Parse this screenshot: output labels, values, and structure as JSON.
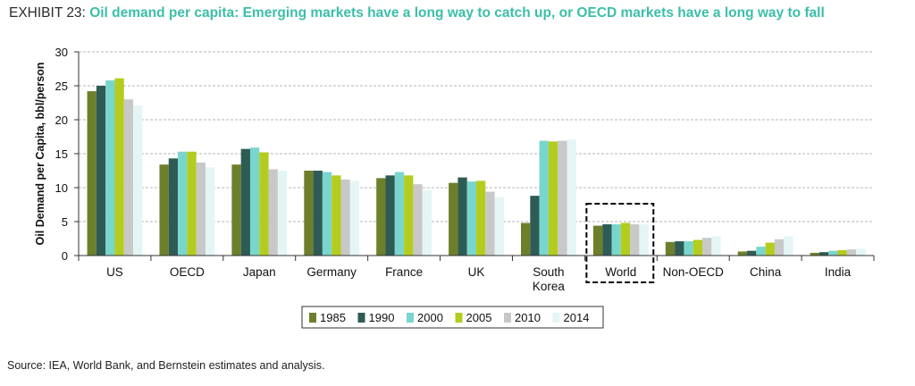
{
  "exhibit_label": "EXHIBIT 23:",
  "exhibit_title": "Oil demand per capita: Emerging markets have a long way to catch up, or OECD markets have a long way to fall",
  "source": "Source: IEA, World Bank, and Bernstein estimates and analysis.",
  "colors": {
    "1985": "#6e7f2b",
    "1990": "#2f5b55",
    "2000": "#79d6cc",
    "2005": "#b4cc1e",
    "2010": "#c8c8c8",
    "2014": "#e3f6f5",
    "highlight_box": "#000000",
    "title_accent": "#3bbfa8"
  },
  "chart_data": {
    "type": "bar",
    "title": "Oil demand per capita: Emerging markets have a long way to catch up, or OECD markets have a long way to fall",
    "xlabel": "",
    "ylabel": "Oil Demand per Capita, bbl/person",
    "ylim": [
      0,
      30
    ],
    "yticks": [
      "0",
      "5",
      "10",
      "15",
      "20",
      "25",
      "30"
    ],
    "grid": true,
    "legend_position": "bottom",
    "categories": [
      "US",
      "OECD",
      "Japan",
      "Germany",
      "France",
      "UK",
      "South Korea",
      "World",
      "Non-OECD",
      "China",
      "India"
    ],
    "highlighted_category": "World",
    "series": [
      {
        "name": "1985",
        "values": [
          24.2,
          13.4,
          13.4,
          12.5,
          11.4,
          10.7,
          4.8,
          4.4,
          2.0,
          0.6,
          0.4
        ]
      },
      {
        "name": "1990",
        "values": [
          25.0,
          14.3,
          15.7,
          12.5,
          11.8,
          11.5,
          8.8,
          4.6,
          2.1,
          0.7,
          0.5
        ]
      },
      {
        "name": "2000",
        "values": [
          25.8,
          15.3,
          15.9,
          12.3,
          12.3,
          10.9,
          16.9,
          4.6,
          2.1,
          1.3,
          0.7
        ]
      },
      {
        "name": "2005",
        "values": [
          26.1,
          15.3,
          15.2,
          11.8,
          11.8,
          11.0,
          16.8,
          4.8,
          2.3,
          1.9,
          0.8
        ]
      },
      {
        "name": "2010",
        "values": [
          23.0,
          13.7,
          12.7,
          11.2,
          10.5,
          9.4,
          16.9,
          4.6,
          2.6,
          2.4,
          0.9
        ]
      },
      {
        "name": "2014",
        "values": [
          22.1,
          13.0,
          12.5,
          11.0,
          9.6,
          8.6,
          17.1,
          4.6,
          2.8,
          2.8,
          1.0
        ]
      }
    ]
  }
}
